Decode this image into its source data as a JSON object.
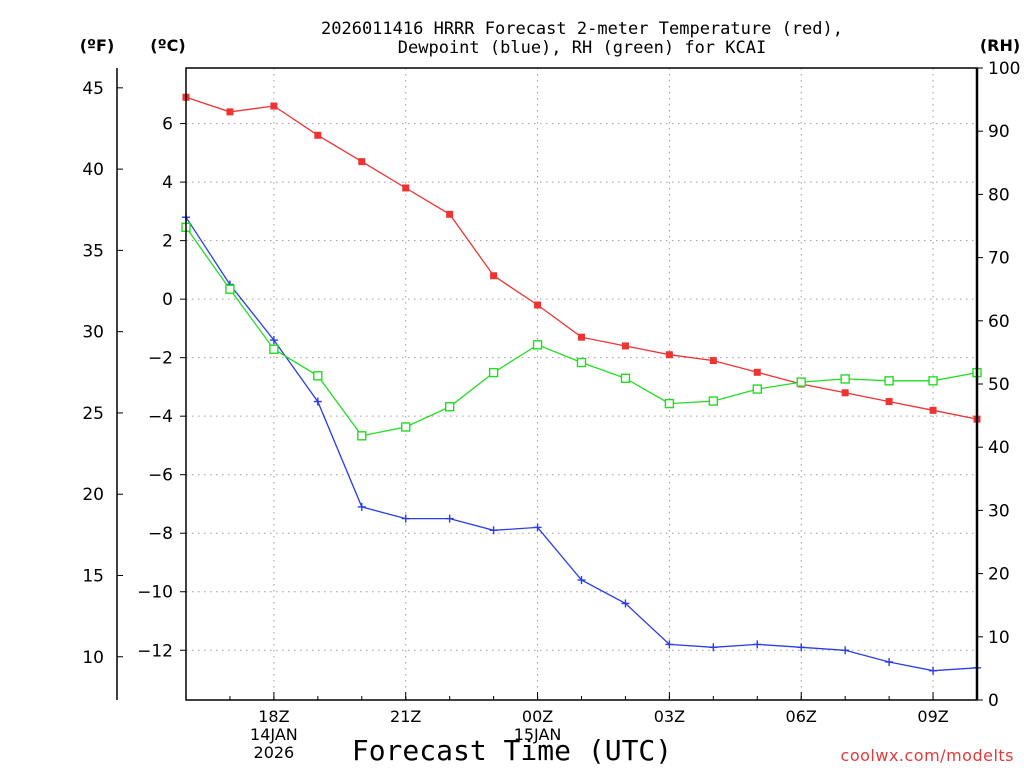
{
  "chart_data": {
    "type": "line",
    "title_line1": "2026011416 HRRR Forecast 2-meter Temperature (red),",
    "title_line2": "Dewpoint (blue), RH (green) for KCAI",
    "xlabel": "Forecast Time (UTC)",
    "credit": "coolwx.com/modelts",
    "unit_labels": {
      "fahrenheit": "(ºF)",
      "celsius": "(ºC)",
      "rh": "(RH)"
    },
    "x_hours": [
      16,
      17,
      18,
      19,
      20,
      21,
      22,
      23,
      24,
      25,
      26,
      27,
      28,
      29,
      30,
      31,
      32,
      33,
      34
    ],
    "xlim": [
      16,
      34
    ],
    "x_ticks": [
      {
        "hour": 18,
        "lines": [
          "18Z",
          "14JAN",
          "2026"
        ]
      },
      {
        "hour": 21,
        "lines": [
          "21Z"
        ]
      },
      {
        "hour": 24,
        "lines": [
          "00Z",
          "15JAN"
        ]
      },
      {
        "hour": 27,
        "lines": [
          "03Z"
        ]
      },
      {
        "hour": 30,
        "lines": [
          "06Z"
        ]
      },
      {
        "hour": 33,
        "lines": [
          "09Z"
        ]
      }
    ],
    "celsius_axis": {
      "ylim": [
        -13.7,
        7.9
      ],
      "ticks": [
        6,
        4,
        2,
        0,
        -2,
        -4,
        -6,
        -8,
        -10,
        -12
      ],
      "tick_labels": [
        "6",
        "4",
        "2",
        "0",
        "−2",
        "−4",
        "−6",
        "−8",
        "−10",
        "−12"
      ]
    },
    "fahrenheit_axis": {
      "ticks": [
        45,
        40,
        35,
        30,
        25,
        20,
        15,
        10
      ],
      "tick_labels": [
        "45",
        "40",
        "35",
        "30",
        "25",
        "20",
        "15",
        "10"
      ]
    },
    "rh_axis": {
      "ylim": [
        0,
        100
      ],
      "ticks": [
        100,
        90,
        80,
        70,
        60,
        50,
        40,
        30,
        20,
        10,
        0
      ],
      "tick_labels": [
        "100",
        "90",
        "80",
        "70",
        "60",
        "50",
        "40",
        "30",
        "20",
        "10",
        "0"
      ]
    },
    "series": [
      {
        "name": "Temperature",
        "color": "#ee3333",
        "marker": "filled-square",
        "axis": "celsius",
        "values": [
          6.9,
          6.4,
          6.6,
          5.6,
          4.7,
          3.8,
          2.9,
          0.8,
          -0.2,
          -1.3,
          -1.6,
          -1.9,
          -2.1,
          -2.5,
          -2.9,
          -3.2,
          -3.5,
          -3.8,
          -4.1
        ]
      },
      {
        "name": "Dewpoint",
        "color": "#2b3ee6",
        "marker": "plus",
        "axis": "celsius",
        "values": [
          2.8,
          0.5,
          -1.4,
          -3.5,
          -7.1,
          -7.5,
          -7.5,
          -7.9,
          -7.8,
          -9.6,
          -10.4,
          -11.8,
          -11.9,
          -11.8,
          -11.9,
          -12.0,
          -12.4,
          -12.7,
          -12.6
        ]
      },
      {
        "name": "RH",
        "color": "#22dd22",
        "marker": "open-square",
        "axis": "rh",
        "values": [
          74.8,
          65.0,
          55.5,
          51.3,
          41.8,
          43.2,
          46.4,
          51.8,
          56.2,
          53.4,
          50.9,
          46.9,
          47.3,
          49.2,
          50.3,
          50.8,
          50.5,
          50.5,
          51.8
        ]
      }
    ]
  }
}
